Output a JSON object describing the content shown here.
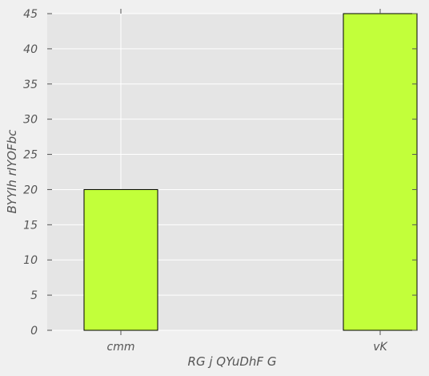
{
  "chart_data": {
    "type": "bar",
    "categories": [
      "cmm",
      "vK"
    ],
    "values": [
      20,
      45
    ],
    "xlabel": "RG  j QYuDhF G",
    "ylabel": "BYYIh rIYOFbc",
    "ylim": [
      0,
      45
    ],
    "yticks": [
      0,
      5,
      10,
      15,
      20,
      25,
      30,
      35,
      40,
      45
    ],
    "grid": true,
    "bar_color": "#c2ff3a",
    "background_color": "#e5e5e5"
  }
}
